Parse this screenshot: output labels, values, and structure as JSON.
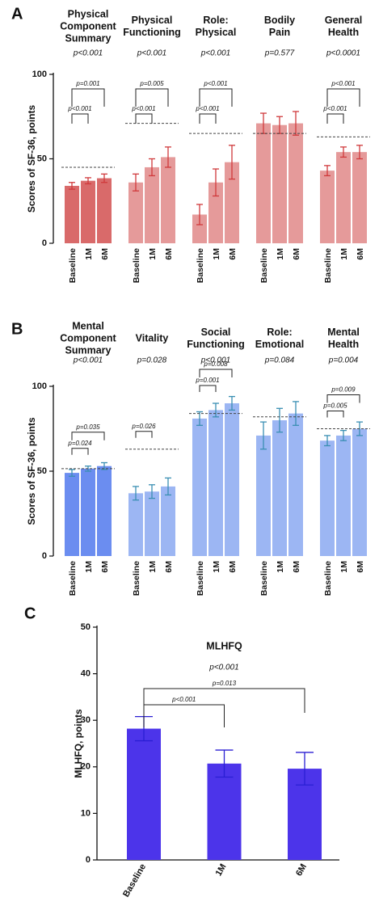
{
  "chart_data": [
    {
      "type": "bar",
      "panel_label": "A",
      "ylabel": "Scores of SF-36, points",
      "ylim": [
        0,
        100
      ],
      "yticks": [
        0,
        50,
        100
      ],
      "categories": [
        "Baseline",
        "1M",
        "6M"
      ],
      "error_color": "#d0393b",
      "groups": [
        {
          "title": [
            "Physical",
            "Component",
            "Summary"
          ],
          "p_value": "p<0.001",
          "color": "#d96a6a",
          "values": [
            34,
            37,
            38.5
          ],
          "errors": [
            2,
            1.8,
            2.5
          ],
          "reference": 45,
          "comparisons": {
            "1M": "p<0.001",
            "6M": "p=0.001"
          }
        },
        {
          "title": [
            "Physical",
            "Functioning"
          ],
          "p_value": "p<0.001",
          "color": "#e59a9a",
          "values": [
            36,
            45,
            51
          ],
          "errors": [
            5,
            5,
            6
          ],
          "reference": 71,
          "comparisons": {
            "1M": "p<0.001",
            "6M": "p=0.005"
          }
        },
        {
          "title": [
            "Role:",
            "Physical"
          ],
          "p_value": "p<0.001",
          "color": "#e59a9a",
          "values": [
            17,
            36,
            48
          ],
          "errors": [
            6,
            8,
            10
          ],
          "reference": 65,
          "comparisons": {
            "1M": "p<0.001",
            "6M": "p<0.001"
          }
        },
        {
          "title": [
            "Bodily",
            "Pain"
          ],
          "p_value": "p=0.577",
          "color": "#e59a9a",
          "values": [
            71,
            70,
            71
          ],
          "errors": [
            6,
            5,
            7
          ],
          "reference": 65
        },
        {
          "title": [
            "General",
            "Health"
          ],
          "p_value": "p<0.0001",
          "color": "#e59a9a",
          "values": [
            43,
            54,
            54
          ],
          "errors": [
            3,
            3,
            4
          ],
          "reference": 63,
          "comparisons": {
            "1M": "p<0.001",
            "6M": "p<0.001"
          }
        }
      ]
    },
    {
      "type": "bar",
      "panel_label": "B",
      "ylabel": "Scores of SF-36, points",
      "ylim": [
        0,
        100
      ],
      "yticks": [
        0,
        50,
        100
      ],
      "categories": [
        "Baseline",
        "1M",
        "6M"
      ],
      "error_color": "#3a8fb3",
      "groups": [
        {
          "title": [
            "Mental",
            "Component",
            "Summary"
          ],
          "p_value": "p<0.001",
          "color": "#6b8df0",
          "values": [
            49,
            51.5,
            53
          ],
          "errors": [
            2,
            1.5,
            2
          ],
          "reference": 51.5,
          "comparisons": {
            "1M": "p=0.024",
            "6M": "p=0.035"
          }
        },
        {
          "title": [
            "Vitality"
          ],
          "p_value": "p=0.028",
          "color": "#9cb6f3",
          "values": [
            37,
            38,
            41
          ],
          "errors": [
            4,
            4,
            5
          ],
          "reference": 63,
          "comparisons": {
            "1M": "p=0.026"
          }
        },
        {
          "title": [
            "Social",
            "Functioning"
          ],
          "p_value": "p<0.001",
          "color": "#9cb6f3",
          "values": [
            81,
            86,
            90
          ],
          "errors": [
            4,
            4,
            4
          ],
          "reference": 84,
          "comparisons": {
            "1M": "p=0.001",
            "6M": "p=0.008"
          }
        },
        {
          "title": [
            "Role:",
            "Emotional"
          ],
          "p_value": "p=0.084",
          "color": "#9cb6f3",
          "values": [
            71,
            80,
            84
          ],
          "errors": [
            8,
            7,
            7
          ],
          "reference": 82
        },
        {
          "title": [
            "Mental",
            "Health"
          ],
          "p_value": "p=0.004",
          "color": "#9cb6f3",
          "values": [
            68,
            71,
            75
          ],
          "errors": [
            3,
            3,
            4
          ],
          "reference": 75,
          "comparisons": {
            "1M": "p=0.005",
            "6M": "p=0.009"
          }
        }
      ]
    },
    {
      "type": "bar",
      "panel_label": "C",
      "ylabel": "MLHFQ, points",
      "ylim": [
        0,
        50
      ],
      "yticks": [
        0,
        10,
        20,
        30,
        40,
        50
      ],
      "categories": [
        "Baseline",
        "1M",
        "6M"
      ],
      "error_color": "#2a1fd4",
      "groups": [
        {
          "title": [
            "MLHFQ"
          ],
          "p_value": "p<0.001",
          "color": "#4c34ea",
          "values": [
            28.2,
            20.7,
            19.6
          ],
          "errors": [
            2.6,
            2.9,
            3.5
          ],
          "comparisons": {
            "1M": "p<0.001",
            "6M": "p=0.013"
          }
        }
      ]
    }
  ]
}
